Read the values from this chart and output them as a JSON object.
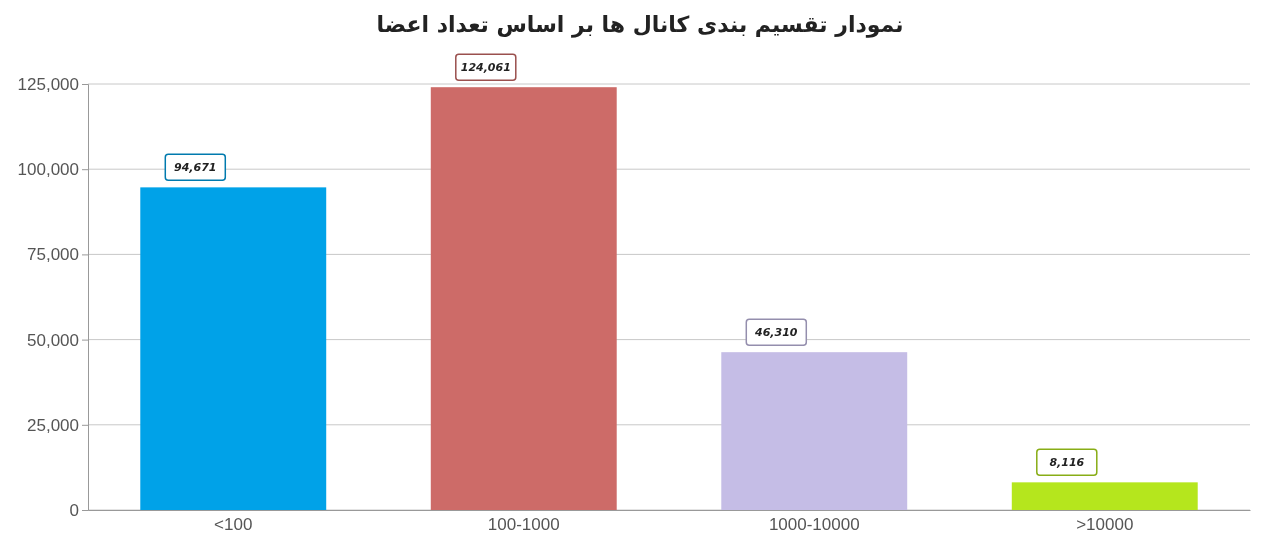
{
  "chart_data": {
    "type": "bar",
    "title": "نمودار تقسیم بندی کانال ها بر اساس تعداد اعضا",
    "categories": [
      "<100",
      "100-1000",
      "1000-10000",
      ">10000"
    ],
    "values": [
      94671,
      124061,
      46310,
      8116
    ],
    "colors": [
      "#00a2e8",
      "#cd6b68",
      "#c5bde6",
      "#b5e61d"
    ],
    "ylim": [
      0,
      125000
    ],
    "yticks": [
      {
        "value": 0,
        "label": "0"
      },
      {
        "value": 25000,
        "label": "25,000"
      },
      {
        "value": 50000,
        "label": "50,000"
      },
      {
        "value": 75000,
        "label": "75,000"
      },
      {
        "value": 100000,
        "label": "100,000"
      },
      {
        "value": 125000,
        "label": "125,000"
      }
    ],
    "grid": "y",
    "value_labels": [
      "94,671",
      "124,061",
      "46,310",
      "8,116"
    ]
  }
}
